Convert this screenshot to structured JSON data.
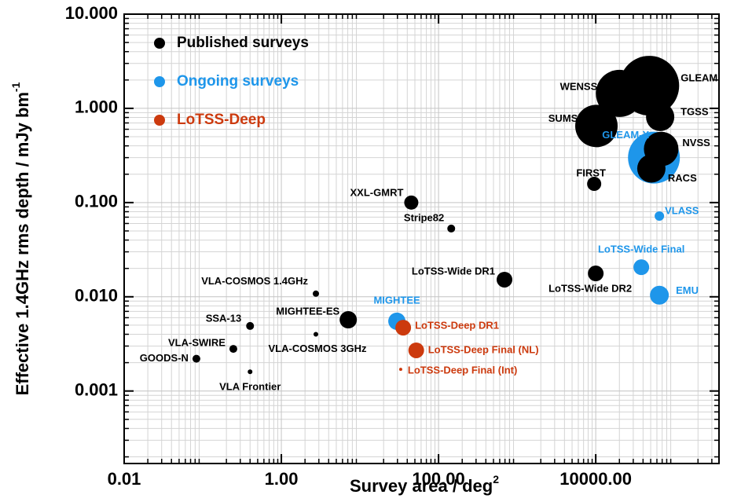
{
  "chart_data": {
    "type": "scatter",
    "xlabel": {
      "text": "Survey area / deg",
      "sup": "2"
    },
    "ylabel": {
      "text": "Effective 1.4GHz rms depth / mJy bm",
      "sup": "-1"
    },
    "xscale": "log",
    "yscale": "log",
    "grid": true,
    "legend": "upper left",
    "xlim": [
      0.01,
      370000
    ],
    "ylim": [
      0.00017,
      10
    ],
    "xticks": [
      {
        "value": 0.01,
        "label": "0.01"
      },
      {
        "value": 1,
        "label": "1.00"
      },
      {
        "value": 100,
        "label": "100.00"
      },
      {
        "value": 10000,
        "label": "10000.00"
      }
    ],
    "yticks": [
      {
        "value": 0.001,
        "label": "0.001"
      },
      {
        "value": 0.01,
        "label": "0.010"
      },
      {
        "value": 0.1,
        "label": "0.100"
      },
      {
        "value": 1,
        "label": "1.000"
      },
      {
        "value": 10,
        "label": "10.000"
      }
    ],
    "series": [
      {
        "name": "Published surveys",
        "color": "#000000",
        "labels": [
          "GOODS-N",
          "VLA-SWIRE",
          "SSA-13",
          "VLA Frontier",
          "VLA-COSMOS 1.4GHz",
          "VLA-COSMOS 3GHz",
          "MIGHTEE-ES",
          "XXL-GMRT",
          "Stripe82",
          "LoTSS-Wide DR1",
          "LoTSS-Wide DR2",
          "FIRST",
          "WENSS",
          "SUMSS",
          "GLEAM",
          "TGSS",
          "NVSS",
          "RACS"
        ],
        "x": [
          0.083,
          0.245,
          0.4,
          0.4,
          2.75,
          2.75,
          7.1,
          45,
          145,
          690,
          10000,
          9550,
          20000,
          10200,
          48000,
          66000,
          68000,
          51000
        ],
        "values": [
          0.0022,
          0.0028,
          0.0049,
          0.0016,
          0.0108,
          0.004,
          0.0057,
          0.1,
          0.053,
          0.0152,
          0.0177,
          0.158,
          1.44,
          0.65,
          1.74,
          0.81,
          0.37,
          0.23
        ],
        "sizes": [
          5,
          5,
          5,
          3,
          4,
          3,
          11,
          9,
          5,
          10,
          10,
          9,
          30,
          27,
          38,
          18,
          22,
          18
        ]
      },
      {
        "name": "Ongoing surveys",
        "color": "#1e96ea",
        "labels": [
          "GLEAM-X",
          "VLASS",
          "LoTSS-Wide Final",
          "EMU",
          "MIGHTEE"
        ],
        "x": [
          55000,
          64500,
          38000,
          64500,
          29.5
        ],
        "values": [
          0.3,
          0.072,
          0.0206,
          0.0104,
          0.0055
        ],
        "sizes": [
          33,
          6,
          10,
          12,
          11
        ]
      },
      {
        "name": "LoTSS-Deep",
        "color": "#cc3a0e",
        "labels": [
          "LoTSS-Deep DR1",
          "LoTSS-Deep Final (NL)",
          "LoTSS-Deep Final (Int)"
        ],
        "x": [
          35.5,
          52,
          33
        ],
        "values": [
          0.0047,
          0.0027,
          0.0017
        ],
        "sizes": [
          10,
          10,
          2
        ]
      }
    ]
  }
}
